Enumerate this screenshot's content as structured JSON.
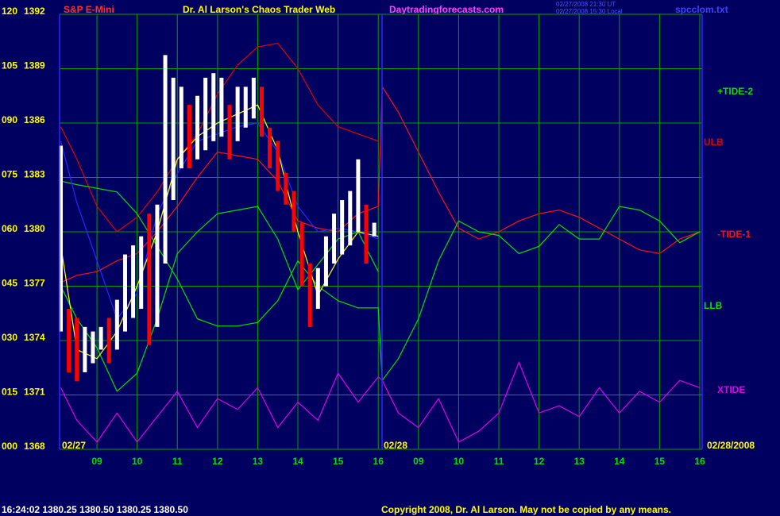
{
  "header": {
    "symbol": "S&P E-Mini",
    "site": "Daytradingforecasts.com",
    "time_ut": "02/27/2008 21:30 UT",
    "time_local": "02/27/2008 15:30 Local",
    "file": "spcclom.txt"
  },
  "chart_data": {
    "type": "line",
    "title": "Dr. Al Larson's Chaos Trader Web",
    "annotations": [
      "02/27",
      "02/28",
      "02/28/2008"
    ],
    "xlim": [
      0.07,
      16.06
    ],
    "xticks": [
      {
        "value": 1,
        "label": "09"
      },
      {
        "value": 2,
        "label": "10"
      },
      {
        "value": 3,
        "label": "11"
      },
      {
        "value": 4,
        "label": "12"
      },
      {
        "value": 5,
        "label": "13"
      },
      {
        "value": 6,
        "label": "14"
      },
      {
        "value": 7,
        "label": "15"
      },
      {
        "value": 8,
        "label": "16"
      },
      {
        "value": 9,
        "label": "09"
      },
      {
        "value": 10,
        "label": "10"
      },
      {
        "value": 11,
        "label": "11"
      },
      {
        "value": 12,
        "label": "12"
      },
      {
        "value": 13,
        "label": "13"
      },
      {
        "value": 14,
        "label": "14"
      },
      {
        "value": 15,
        "label": "15"
      },
      {
        "value": 16,
        "label": "16"
      }
    ],
    "ylim": [
      0,
      120
    ],
    "yticks": [
      {
        "value": 0,
        "label": "000"
      },
      {
        "value": 15,
        "label": "015"
      },
      {
        "value": 30,
        "label": "030"
      },
      {
        "value": 45,
        "label": "045"
      },
      {
        "value": 60,
        "label": "060"
      },
      {
        "value": 75,
        "label": "075"
      },
      {
        "value": 90,
        "label": "090"
      },
      105,
      120
    ],
    "y2lim": [
      1368,
      1392
    ],
    "y2ticks": [
      1368,
      1371,
      1374,
      1377,
      1380,
      1383,
      1386,
      1389,
      1392
    ],
    "grid": true,
    "grid_color": "#00a000",
    "x": [
      0.1,
      0.5,
      1,
      1.5,
      2,
      2.5,
      3,
      3.5,
      4,
      4.5,
      5,
      5.5,
      6,
      6.5,
      7,
      7.5,
      8,
      8.1,
      8.5,
      9,
      9.5,
      10,
      10.5,
      11,
      11.5,
      12,
      12.5,
      13,
      13.5,
      14,
      14.5,
      15,
      15.5,
      16
    ],
    "series": [
      {
        "name": "ULB",
        "color": "#e00000",
        "values": [
          89,
          80,
          67,
          60,
          64,
          71,
          80,
          87,
          98,
          106,
          111,
          112,
          105,
          95,
          89,
          87,
          85,
          null,
          null,
          null,
          null,
          null,
          null,
          null,
          null,
          null,
          null,
          null,
          null,
          null,
          null,
          null,
          null,
          null
        ]
      },
      {
        "name": "-TIDE-1",
        "color": "#ff1010",
        "values": [
          46,
          48,
          49,
          52,
          54,
          60,
          67,
          75,
          82,
          81,
          80,
          74,
          63,
          61,
          60,
          65,
          67,
          100,
          93,
          82,
          71,
          61,
          58,
          60,
          63,
          65,
          66,
          64,
          61,
          58,
          55,
          54,
          58,
          60
        ]
      },
      {
        "name": "+TIDE-2",
        "color": "#00e000",
        "values": [
          74,
          73,
          72,
          71,
          65,
          56,
          47,
          36,
          34,
          34,
          35,
          41,
          52,
          45,
          41,
          39,
          39,
          19,
          25,
          36,
          52,
          63,
          60,
          59,
          54,
          56,
          62,
          58,
          58,
          67,
          66,
          63,
          57,
          60
        ]
      },
      {
        "name": "LLB",
        "color": "#00e000",
        "values": [
          45,
          36,
          28,
          16,
          21,
          36,
          54,
          60,
          65,
          66,
          67,
          58,
          44,
          51,
          58,
          60,
          49,
          null,
          null,
          null,
          null,
          null,
          null,
          null,
          null,
          null,
          null,
          null,
          null,
          null,
          null,
          null,
          null,
          null
        ]
      },
      {
        "name": "XTIDE",
        "color": "#e000e0",
        "values": [
          17,
          8,
          2,
          10,
          2,
          9,
          16,
          6,
          14,
          11,
          17,
          6,
          13,
          8,
          21,
          13,
          20,
          19,
          10,
          6,
          14,
          2,
          5,
          10,
          24,
          10,
          12,
          9,
          17,
          10,
          16,
          13,
          19,
          17
        ]
      },
      {
        "color": "#2828ff",
        "values": [
          85,
          68,
          52,
          36,
          43,
          65,
          76,
          85,
          87,
          89,
          90,
          82,
          67,
          60,
          61,
          60,
          58,
          null,
          null,
          null,
          null,
          null,
          null,
          null,
          null,
          null,
          null,
          null,
          null,
          null,
          null,
          null,
          null,
          null
        ]
      },
      {
        "color": "#ffff00",
        "axis": "y2",
        "values": [
          1379.25,
          1373.5,
          1373,
          1374.5,
          1377,
          1380,
          1384,
          1385.25,
          1386,
          1386.5,
          1387,
          1384.5,
          1380,
          1376.5,
          1378.5,
          1380,
          1379.75,
          null,
          null,
          null,
          null,
          null,
          null,
          null,
          null,
          null,
          null,
          null,
          null,
          null,
          null,
          null,
          null,
          null
        ]
      }
    ],
    "price_bars": {
      "axis": "y2",
      "up_color": "#ffffff",
      "down_color": "#ff0000",
      "x": [
        0.1,
        0.3,
        0.5,
        0.7,
        0.9,
        1.1,
        1.3,
        1.5,
        1.7,
        1.9,
        2.1,
        2.3,
        2.5,
        2.7,
        2.9,
        3.1,
        3.3,
        3.5,
        3.7,
        3.9,
        4.1,
        4.3,
        4.5,
        4.7,
        4.9,
        5.1,
        5.3,
        5.5,
        5.7,
        5.9,
        6.1,
        6.3,
        6.5,
        6.7,
        6.9,
        7.1,
        7.3,
        7.5,
        7.7,
        7.9
      ],
      "low": [
        1374.5,
        1372.25,
        1371.75,
        1372.25,
        1372.75,
        1373.5,
        1372.75,
        1373.5,
        1374.5,
        1375.25,
        1375.75,
        1373.75,
        1374.75,
        1378.25,
        1381.75,
        1383.5,
        1383.5,
        1384,
        1384.5,
        1385,
        1385.25,
        1384,
        1385,
        1385.75,
        1386.25,
        1385.25,
        1383.5,
        1382.25,
        1381.5,
        1380,
        1377,
        1374.75,
        1375.75,
        1377,
        1378.25,
        1378.75,
        1379.25,
        1380,
        1378.25,
        1379.75
      ],
      "high": [
        1384.75,
        1375.75,
        1375.25,
        1374.75,
        1374.5,
        1374.75,
        1375.25,
        1376.25,
        1378.75,
        1379.25,
        1379.75,
        1381,
        1381.5,
        1389.75,
        1388.5,
        1388,
        1387,
        1387.5,
        1388.5,
        1388.75,
        1388.5,
        1387,
        1388,
        1388,
        1388.5,
        1388,
        1385.75,
        1385,
        1383.25,
        1382.25,
        1380.5,
        1378.25,
        1378,
        1379.75,
        1381,
        1381.75,
        1382.25,
        1384,
        1381.5,
        1380.5
      ]
    }
  },
  "footer": {
    "quote": "16:24:02 1380.25 1380.50 1380.25 1380.50",
    "copyright": "Copyright 2008, Dr. Al Larson. May not be copied by any means."
  }
}
